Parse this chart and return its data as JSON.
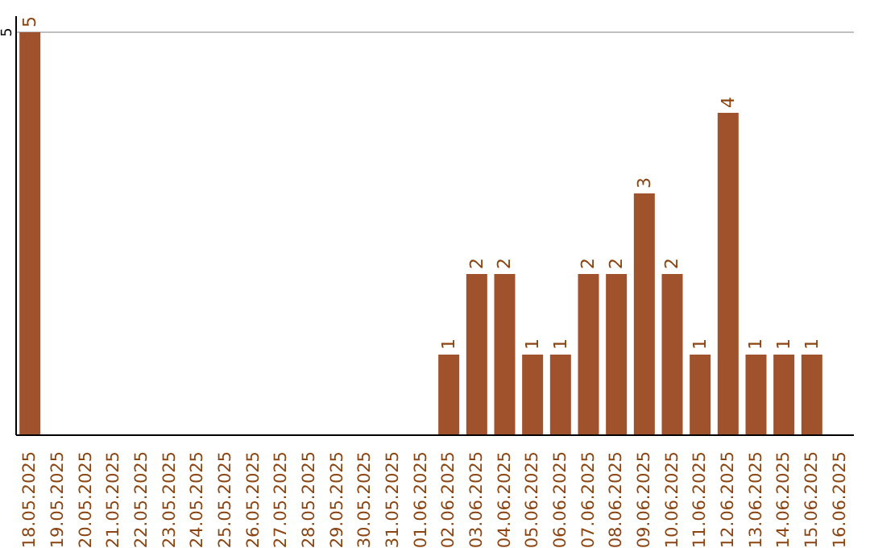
{
  "chart_data": {
    "type": "bar",
    "categories": [
      "18.05.2025",
      "19.05.2025",
      "20.05.2025",
      "21.05.2025",
      "22.05.2025",
      "23.05.2025",
      "24.05.2025",
      "25.05.2025",
      "26.05.2025",
      "27.05.2025",
      "28.05.2025",
      "29.05.2025",
      "30.05.2025",
      "31.05.2025",
      "01.06.2025",
      "02.06.2025",
      "03.06.2025",
      "04.06.2025",
      "05.06.2025",
      "06.06.2025",
      "07.06.2025",
      "08.06.2025",
      "09.06.2025",
      "10.06.2025",
      "11.06.2025",
      "12.06.2025",
      "13.06.2025",
      "14.06.2025",
      "15.06.2025",
      "16.06.2025"
    ],
    "values": [
      5,
      0,
      0,
      0,
      0,
      0,
      0,
      0,
      0,
      0,
      0,
      0,
      0,
      0,
      0,
      1,
      2,
      2,
      1,
      1,
      2,
      2,
      3,
      2,
      1,
      4,
      1,
      1,
      1,
      0
    ],
    "value_labels": [
      "5",
      null,
      null,
      null,
      null,
      null,
      null,
      null,
      null,
      null,
      null,
      null,
      null,
      null,
      null,
      "1",
      "2",
      "2",
      "1",
      "1",
      "2",
      "2",
      "3",
      "2",
      "1",
      "4",
      "1",
      "1",
      "1",
      null
    ],
    "color": "#a0522d",
    "ylim": [
      0,
      5.2
    ],
    "yticks": [
      5
    ],
    "grid": "y"
  }
}
